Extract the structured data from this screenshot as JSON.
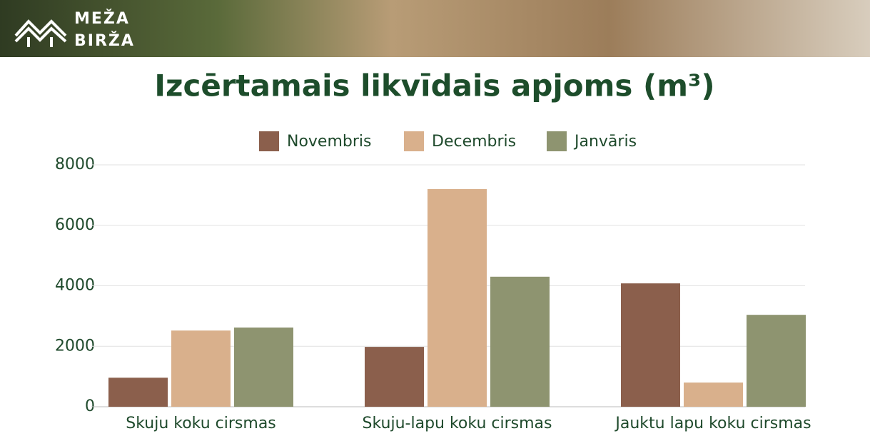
{
  "brand": [
    "MEŽA",
    "BIRŽA"
  ],
  "chart_data": {
    "type": "bar",
    "title": "Izcērtamais likvīdais apjoms (m³)",
    "categories": [
      "Skuju koku cirsmas",
      "Skuju-lapu koku cirsmas",
      "Jauktu lapu koku cirsmas"
    ],
    "series": [
      {
        "name": "Novembris",
        "color": "#8b5f4c",
        "values": [
          960,
          1980,
          4080
        ]
      },
      {
        "name": "Decembris",
        "color": "#d9b08c",
        "values": [
          2520,
          7200,
          800
        ]
      },
      {
        "name": "Janvāris",
        "color": "#8e9470",
        "values": [
          2620,
          4300,
          3040
        ]
      }
    ],
    "ylim": [
      0,
      8000
    ],
    "yticks": [
      0,
      2000,
      4000,
      6000,
      8000
    ],
    "grid": true
  }
}
